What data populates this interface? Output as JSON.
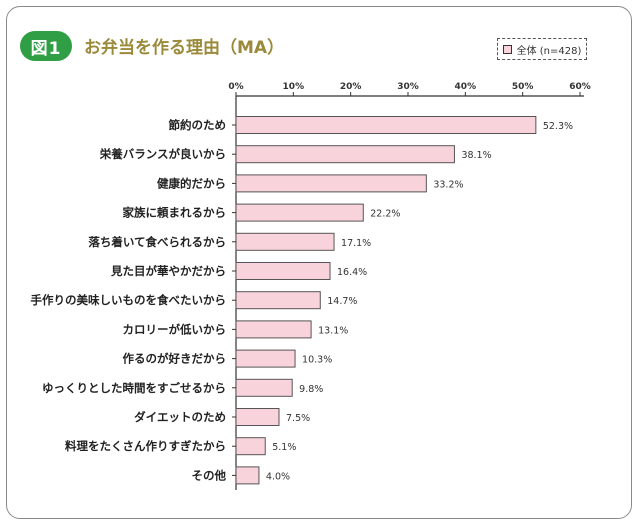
{
  "figure": {
    "badge": "図1",
    "title": "お弁当を作る理由（MA）",
    "legend_label": "全体 (n=428)"
  },
  "chart_data": {
    "type": "bar",
    "orientation": "horizontal",
    "categories": [
      "節約のため",
      "栄養バランスが良いから",
      "健康的だから",
      "家族に頼まれるから",
      "落ち着いて食べられるから",
      "見た目が華やかだから",
      "手作りの美味しいものを食べたいから",
      "カロリーが低いから",
      "作るのが好きだから",
      "ゆっくりとした時間をすごせるから",
      "ダイエットのため",
      "料理をたくさん作りすぎたから",
      "その他"
    ],
    "values": [
      52.3,
      38.1,
      33.2,
      22.2,
      17.1,
      16.4,
      14.7,
      13.1,
      10.3,
      9.8,
      7.5,
      5.1,
      4.0
    ],
    "value_labels": [
      "52.3%",
      "38.1%",
      "33.2%",
      "22.2%",
      "17.1%",
      "16.4%",
      "14.7%",
      "13.1%",
      "10.3%",
      "9.8%",
      "7.5%",
      "5.1%",
      "4.0%"
    ],
    "xlim": [
      0,
      60
    ],
    "ticks": [
      0,
      10,
      20,
      30,
      40,
      50,
      60
    ],
    "tick_labels": [
      "0%",
      "10%",
      "20%",
      "30%",
      "40%",
      "50%",
      "60%"
    ],
    "axis_position": "top",
    "grid": false,
    "legend_position": "top-right",
    "bar_color": "#f8d3dc",
    "bar_edge_color": "#555555"
  }
}
